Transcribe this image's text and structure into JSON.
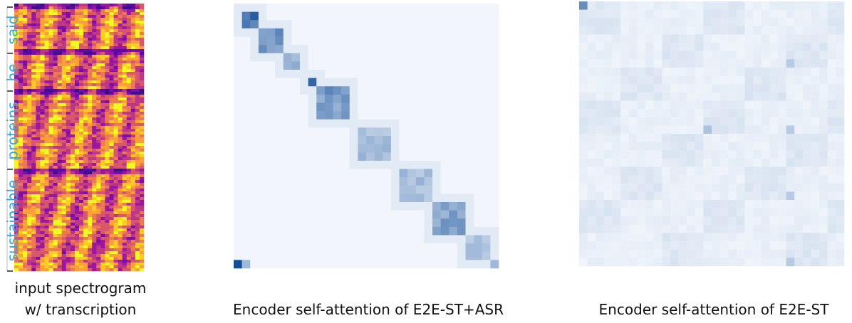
{
  "words": [
    "said",
    "he",
    "proteins",
    "sustainable"
  ],
  "captions": {
    "spectrogram": [
      "input spectrogram",
      "w/ transcription"
    ],
    "asr": "Encoder self-attention of E2E-ST+ASR",
    "st": "Encoder self-attention of E2E-ST"
  }
}
